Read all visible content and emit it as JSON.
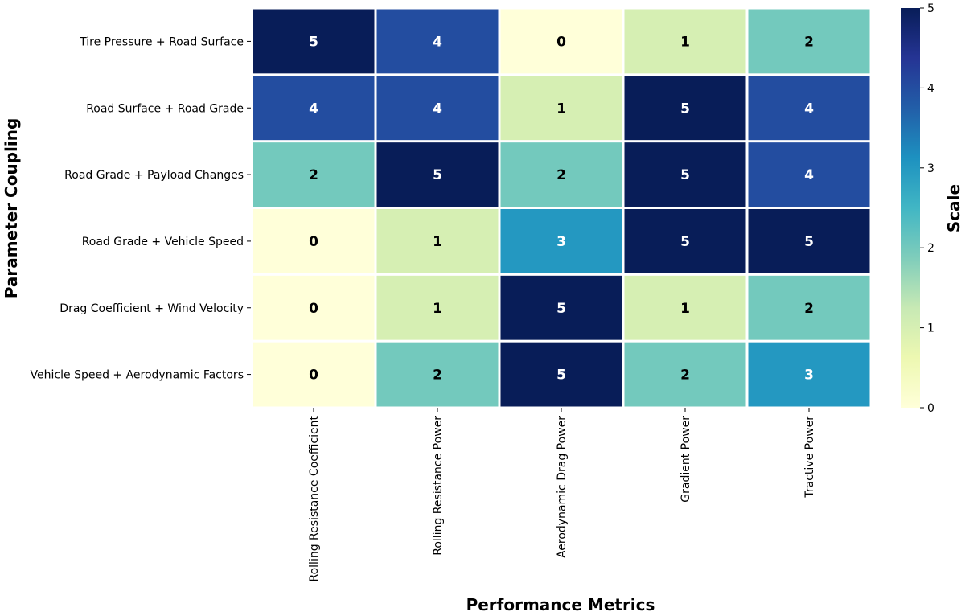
{
  "chart_data": {
    "type": "heatmap",
    "rows": [
      "Tire Pressure + Road Surface",
      "Road Surface + Road Grade",
      "Road Grade + Payload Changes",
      "Road Grade + Vehicle Speed",
      "Drag Coefficient + Wind Velocity",
      "Vehicle Speed + Aerodynamic Factors"
    ],
    "columns": [
      "Rolling Resistance Coefficient",
      "Rolling Resistance Power",
      "Aerodynamic Drag Power",
      "Gradient Power",
      "Tractive Power"
    ],
    "values": [
      [
        5,
        4,
        0,
        1,
        2
      ],
      [
        4,
        4,
        1,
        5,
        4
      ],
      [
        2,
        5,
        2,
        5,
        4
      ],
      [
        0,
        1,
        3,
        5,
        5
      ],
      [
        0,
        1,
        5,
        1,
        2
      ],
      [
        0,
        2,
        5,
        2,
        3
      ]
    ],
    "xlabel": "Performance Metrics",
    "ylabel": "Parameter Coupling",
    "colorbar": {
      "label": "Scale",
      "range": [
        0,
        5
      ],
      "ticks": [
        "0",
        "1",
        "2",
        "3",
        "4",
        "5"
      ],
      "colormap": "YlGnBu"
    },
    "value_colors": {
      "0": "#ffffd9",
      "1": "#d6efb3",
      "2": "#73c9bd",
      "3": "#2498c1",
      "4": "#234da0",
      "5": "#081d58"
    },
    "colormap_stops": [
      "#ffffd9",
      "#edf8b1",
      "#c7e9b4",
      "#7fcdbb",
      "#41b6c4",
      "#1d91c0",
      "#225ea8",
      "#253494",
      "#081d58"
    ]
  }
}
